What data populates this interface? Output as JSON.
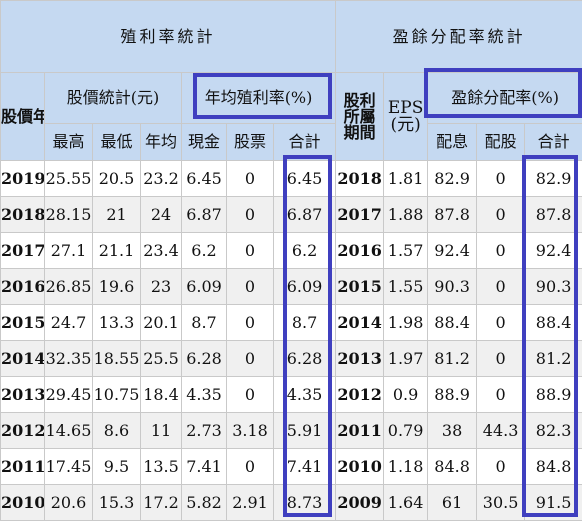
{
  "header": {
    "dividend_title": "殖利率統計",
    "payout_title": "盈餘分配率統計",
    "stock_price_label": "股價年度",
    "price_stats_label": "股價統計(元)",
    "avg_yield_label": "年均殖利率(%)",
    "earnings_year_label": "股利所屬期間",
    "eps_label": "EPS(元)",
    "payout_ratio_label": "盈餘分配率(%)",
    "col_high": "最高",
    "col_low": "最低",
    "col_avg": "年均",
    "col_cash": "現金",
    "col_stock": "股票",
    "col_total": "合計",
    "col_cash_payout": "配息",
    "col_stock_payout": "配股",
    "col_total_payout": "合計"
  },
  "rows": [
    {
      "year": "2019",
      "high": "25.55",
      "low": "20.5",
      "avg": "23.2",
      "cash": "6.45",
      "stock": "0",
      "total": "6.45",
      "period": "2018",
      "eps": "1.81",
      "cash_payout": "82.9",
      "stock_payout": "0",
      "total_payout": "82.9"
    },
    {
      "year": "2018",
      "high": "28.15",
      "low": "21",
      "avg": "24",
      "cash": "6.87",
      "stock": "0",
      "total": "6.87",
      "period": "2017",
      "eps": "1.88",
      "cash_payout": "87.8",
      "stock_payout": "0",
      "total_payout": "87.8"
    },
    {
      "year": "2017",
      "high": "27.1",
      "low": "21.1",
      "avg": "23.4",
      "cash": "6.2",
      "stock": "0",
      "total": "6.2",
      "period": "2016",
      "eps": "1.57",
      "cash_payout": "92.4",
      "stock_payout": "0",
      "total_payout": "92.4"
    },
    {
      "year": "2016",
      "high": "26.85",
      "low": "19.6",
      "avg": "23",
      "cash": "6.09",
      "stock": "0",
      "total": "6.09",
      "period": "2015",
      "eps": "1.55",
      "cash_payout": "90.3",
      "stock_payout": "0",
      "total_payout": "90.3"
    },
    {
      "year": "2015",
      "high": "24.7",
      "low": "13.3",
      "avg": "20.1",
      "cash": "8.7",
      "stock": "0",
      "total": "8.7",
      "period": "2014",
      "eps": "1.98",
      "cash_payout": "88.4",
      "stock_payout": "0",
      "total_payout": "88.4"
    },
    {
      "year": "2014",
      "high": "32.35",
      "low": "18.55",
      "avg": "25.5",
      "cash": "6.28",
      "stock": "0",
      "total": "6.28",
      "period": "2013",
      "eps": "1.97",
      "cash_payout": "81.2",
      "stock_payout": "0",
      "total_payout": "81.2"
    },
    {
      "year": "2013",
      "high": "29.45",
      "low": "10.75",
      "avg": "18.4",
      "cash": "4.35",
      "stock": "0",
      "total": "4.35",
      "period": "2012",
      "eps": "0.9",
      "cash_payout": "88.9",
      "stock_payout": "0",
      "total_payout": "88.9"
    },
    {
      "year": "2012",
      "high": "14.65",
      "low": "8.6",
      "avg": "11",
      "cash": "2.73",
      "stock": "3.18",
      "total": "5.91",
      "period": "2011",
      "eps": "0.79",
      "cash_payout": "38",
      "stock_payout": "44.3",
      "total_payout": "82.3"
    },
    {
      "year": "2011",
      "high": "17.45",
      "low": "9.5",
      "avg": "13.5",
      "cash": "7.41",
      "stock": "0",
      "total": "7.41",
      "period": "2010",
      "eps": "1.18",
      "cash_payout": "84.8",
      "stock_payout": "0",
      "total_payout": "84.8"
    },
    {
      "year": "2010",
      "high": "20.6",
      "low": "15.3",
      "avg": "17.2",
      "cash": "5.82",
      "stock": "2.91",
      "total": "8.73",
      "period": "2009",
      "eps": "1.64",
      "cash_payout": "61",
      "stock_payout": "30.5",
      "total_payout": "91.5"
    }
  ],
  "colors": {
    "header_bg": "#c5d9f1",
    "highlight_border": "#3f3fbf",
    "stripe": "#f0f0f0"
  }
}
